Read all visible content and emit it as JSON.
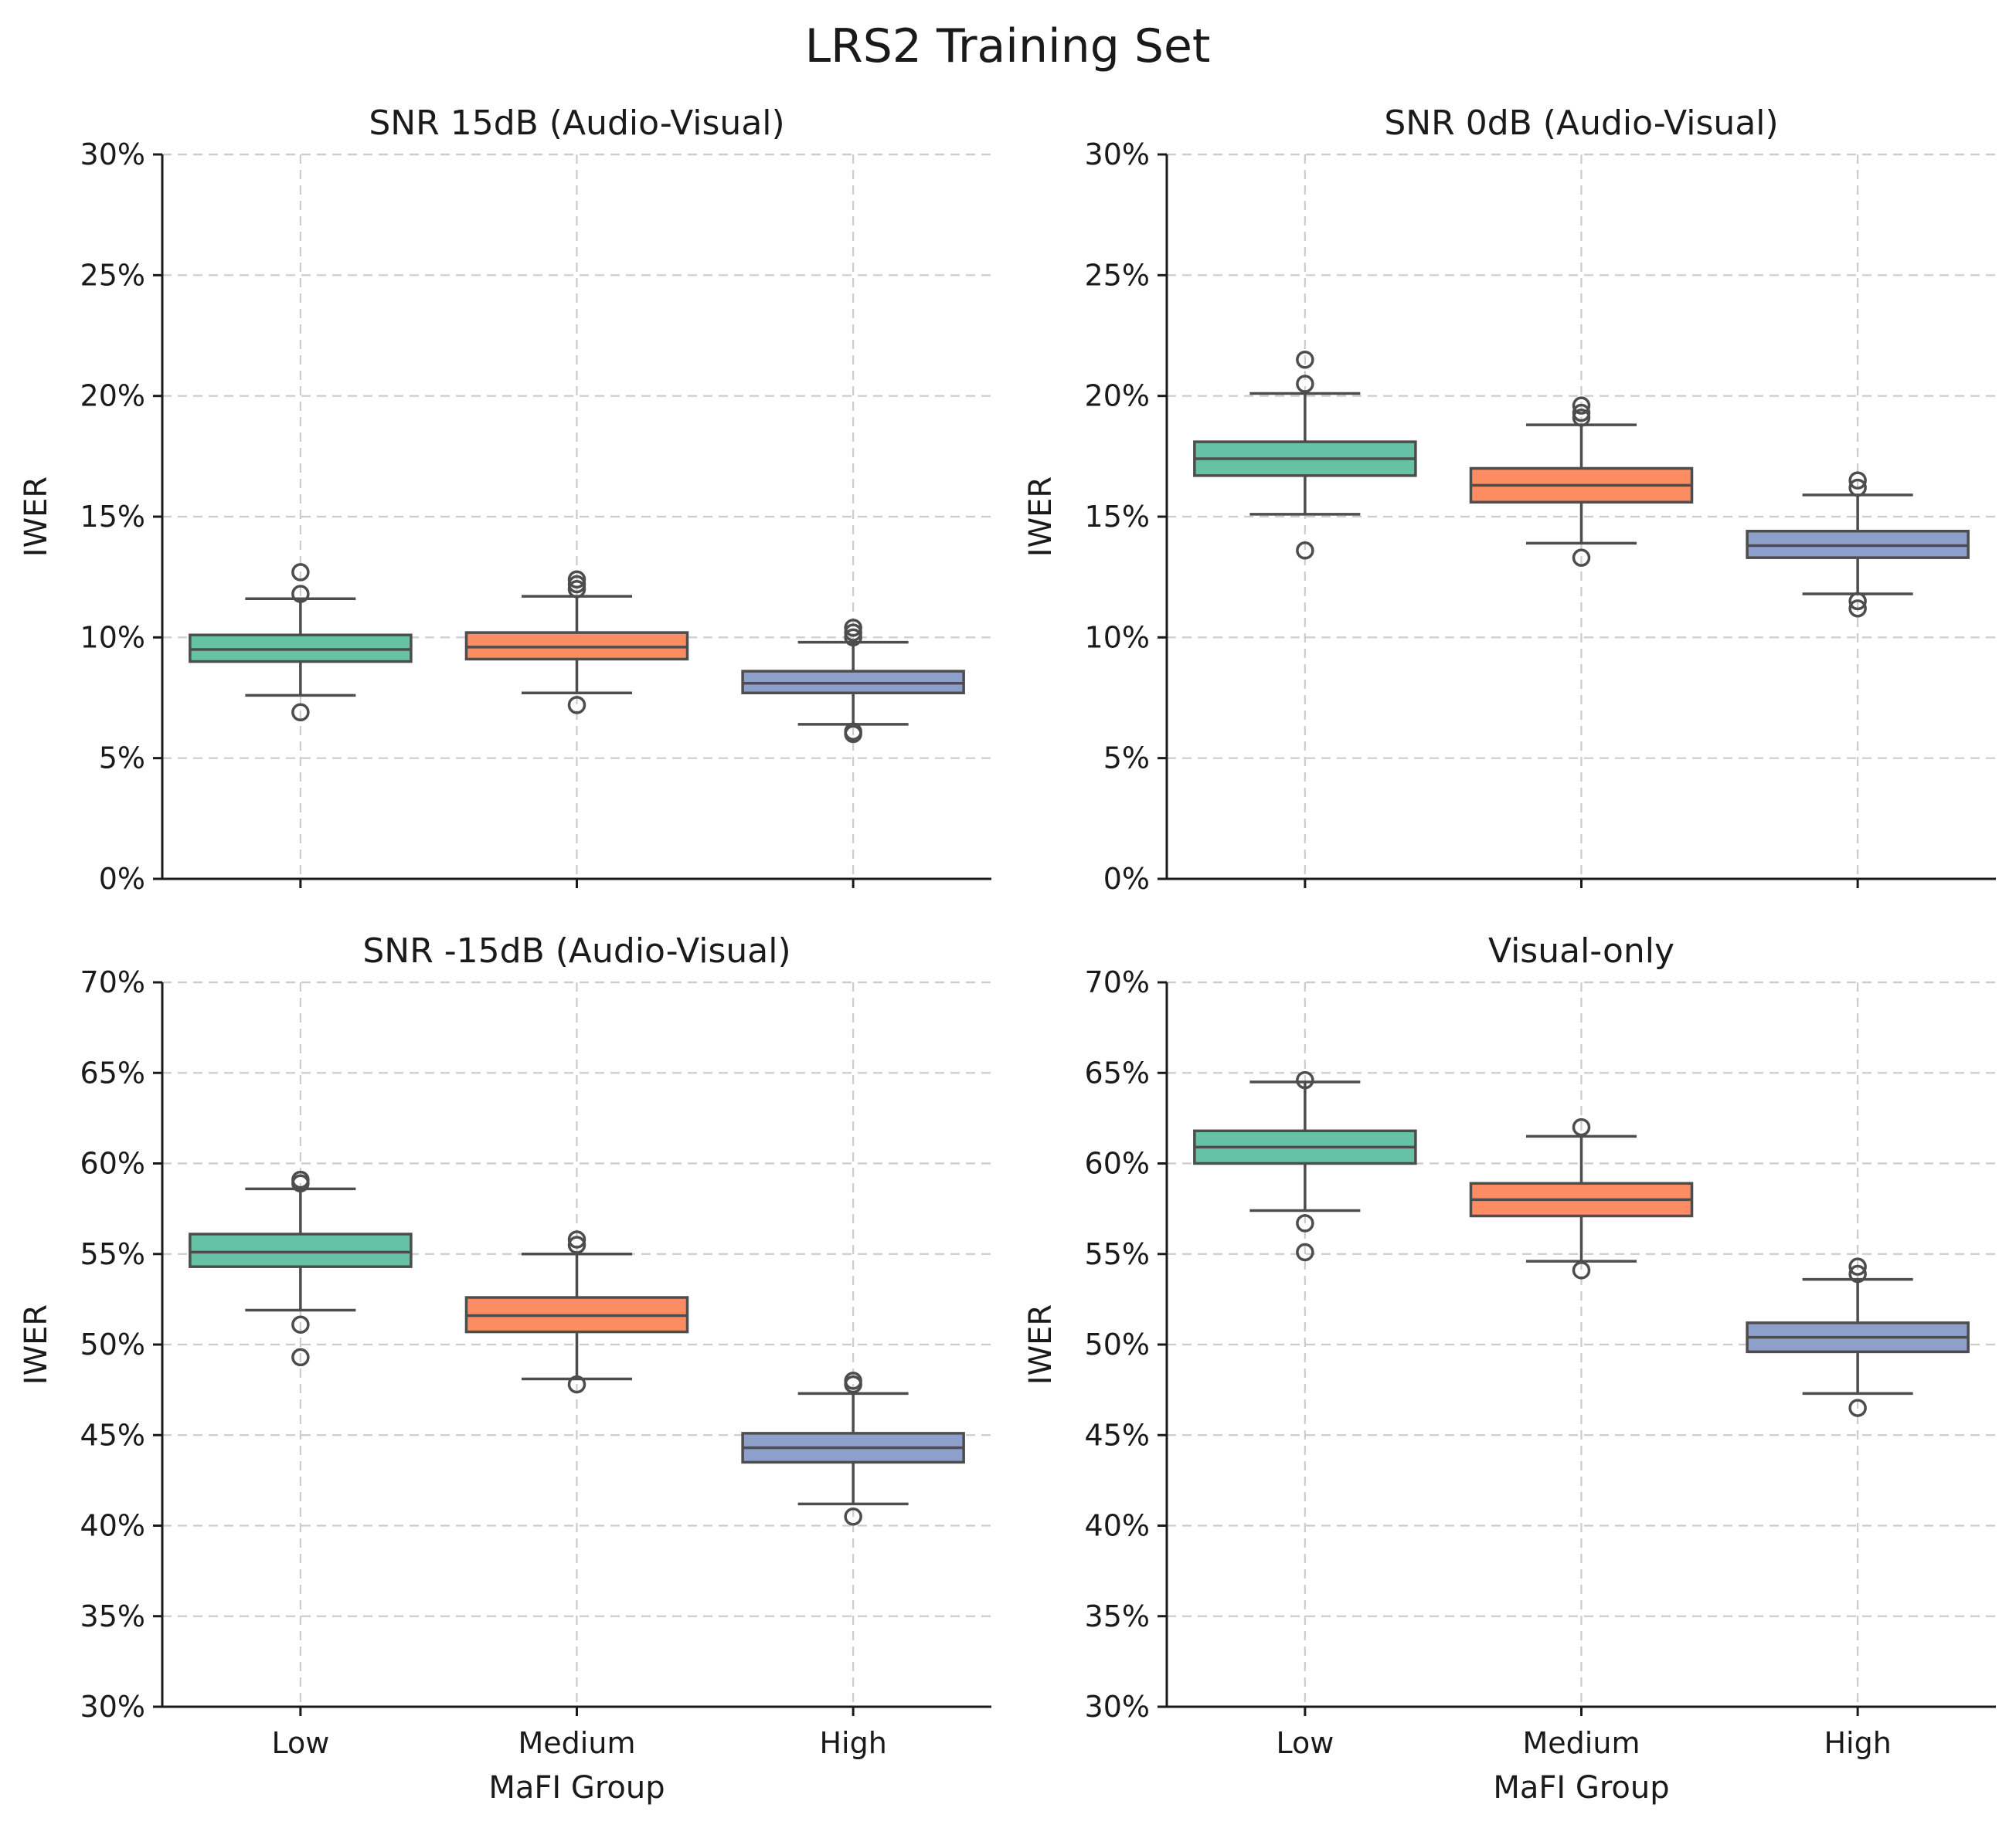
{
  "suptitle": "LRS2 Training Set",
  "chart_data": [
    {
      "type": "box",
      "title": "SNR 15dB (Audio-Visual)",
      "xlabel": "",
      "ylabel": "IWER",
      "ylim": [
        0,
        30
      ],
      "yticks": [
        0,
        5,
        10,
        15,
        20,
        25,
        30
      ],
      "ytick_labels": [
        "0%",
        "5%",
        "10%",
        "15%",
        "20%",
        "25%",
        "30%"
      ],
      "categories": [
        "Low",
        "Medium",
        "High"
      ],
      "show_xtick_labels": false,
      "grid": true,
      "boxes": [
        {
          "category": "Low",
          "color": "#66c2a5",
          "whisker_low": 7.6,
          "q1": 9.0,
          "median": 9.5,
          "q3": 10.1,
          "whisker_high": 11.6,
          "outliers": [
            12.7,
            11.8,
            6.9
          ]
        },
        {
          "category": "Medium",
          "color": "#fc8d62",
          "whisker_low": 7.7,
          "q1": 9.1,
          "median": 9.6,
          "q3": 10.2,
          "whisker_high": 11.7,
          "outliers": [
            12.4,
            12.2,
            12.0,
            7.2
          ]
        },
        {
          "category": "High",
          "color": "#8da0cb",
          "whisker_low": 6.4,
          "q1": 7.7,
          "median": 8.1,
          "q3": 8.6,
          "whisker_high": 9.8,
          "outliers": [
            10.4,
            10.2,
            10.0,
            6.1,
            6.0
          ]
        }
      ]
    },
    {
      "type": "box",
      "title": "SNR 0dB (Audio-Visual)",
      "xlabel": "",
      "ylabel": "IWER",
      "ylim": [
        0,
        30
      ],
      "yticks": [
        0,
        5,
        10,
        15,
        20,
        25,
        30
      ],
      "ytick_labels": [
        "0%",
        "5%",
        "10%",
        "15%",
        "20%",
        "25%",
        "30%"
      ],
      "categories": [
        "Low",
        "Medium",
        "High"
      ],
      "show_xtick_labels": false,
      "grid": true,
      "boxes": [
        {
          "category": "Low",
          "color": "#66c2a5",
          "whisker_low": 15.1,
          "q1": 16.7,
          "median": 17.4,
          "q3": 18.1,
          "whisker_high": 20.1,
          "outliers": [
            21.5,
            20.5,
            13.6
          ]
        },
        {
          "category": "Medium",
          "color": "#fc8d62",
          "whisker_low": 13.9,
          "q1": 15.6,
          "median": 16.3,
          "q3": 17.0,
          "whisker_high": 18.8,
          "outliers": [
            19.6,
            19.3,
            19.1,
            13.3
          ]
        },
        {
          "category": "High",
          "color": "#8da0cb",
          "whisker_low": 11.8,
          "q1": 13.3,
          "median": 13.8,
          "q3": 14.4,
          "whisker_high": 15.9,
          "outliers": [
            16.5,
            16.2,
            11.5,
            11.2
          ]
        }
      ]
    },
    {
      "type": "box",
      "title": "SNR -15dB (Audio-Visual)",
      "xlabel": "MaFI Group",
      "ylabel": "IWER",
      "ylim": [
        30,
        70
      ],
      "yticks": [
        30,
        35,
        40,
        45,
        50,
        55,
        60,
        65,
        70
      ],
      "ytick_labels": [
        "30%",
        "35%",
        "40%",
        "45%",
        "50%",
        "55%",
        "60%",
        "65%",
        "70%"
      ],
      "categories": [
        "Low",
        "Medium",
        "High"
      ],
      "show_xtick_labels": true,
      "grid": true,
      "boxes": [
        {
          "category": "Low",
          "color": "#66c2a5",
          "whisker_low": 51.9,
          "q1": 54.3,
          "median": 55.1,
          "q3": 56.1,
          "whisker_high": 58.6,
          "outliers": [
            59.1,
            58.9,
            51.1,
            49.3
          ]
        },
        {
          "category": "Medium",
          "color": "#fc8d62",
          "whisker_low": 48.1,
          "q1": 50.7,
          "median": 51.6,
          "q3": 52.6,
          "whisker_high": 55.0,
          "outliers": [
            55.8,
            55.5,
            47.8
          ]
        },
        {
          "category": "High",
          "color": "#8da0cb",
          "whisker_low": 41.2,
          "q1": 43.5,
          "median": 44.3,
          "q3": 45.1,
          "whisker_high": 47.3,
          "outliers": [
            48.0,
            47.8,
            40.5
          ]
        }
      ]
    },
    {
      "type": "box",
      "title": "Visual-only",
      "xlabel": "MaFI Group",
      "ylabel": "IWER",
      "ylim": [
        30,
        70
      ],
      "yticks": [
        30,
        35,
        40,
        45,
        50,
        55,
        60,
        65,
        70
      ],
      "ytick_labels": [
        "30%",
        "35%",
        "40%",
        "45%",
        "50%",
        "55%",
        "60%",
        "65%",
        "70%"
      ],
      "categories": [
        "Low",
        "Medium",
        "High"
      ],
      "show_xtick_labels": true,
      "grid": true,
      "boxes": [
        {
          "category": "Low",
          "color": "#66c2a5",
          "whisker_low": 57.4,
          "q1": 60.0,
          "median": 60.9,
          "q3": 61.8,
          "whisker_high": 64.5,
          "outliers": [
            64.6,
            56.7,
            55.1
          ]
        },
        {
          "category": "Medium",
          "color": "#fc8d62",
          "whisker_low": 54.6,
          "q1": 57.1,
          "median": 58.0,
          "q3": 58.9,
          "whisker_high": 61.5,
          "outliers": [
            62.0,
            54.1
          ]
        },
        {
          "category": "High",
          "color": "#8da0cb",
          "whisker_low": 47.3,
          "q1": 49.6,
          "median": 50.4,
          "q3": 51.2,
          "whisker_high": 53.6,
          "outliers": [
            54.3,
            53.9,
            46.5
          ]
        }
      ]
    }
  ]
}
